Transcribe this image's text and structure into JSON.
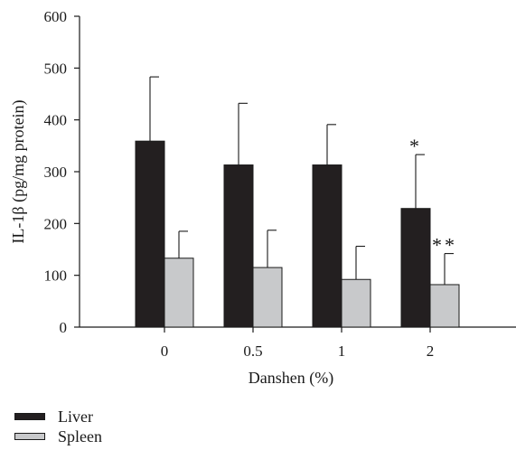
{
  "chart_data": {
    "type": "bar",
    "categories": [
      "0",
      "0.5",
      "1",
      "2"
    ],
    "series": [
      {
        "name": "Liver",
        "values": [
          359,
          313,
          313,
          229
        ],
        "errors": [
          124,
          119,
          78,
          104
        ],
        "color": "#231f20"
      },
      {
        "name": "Spleen",
        "values": [
          133,
          115,
          92,
          82
        ],
        "errors": [
          52,
          72,
          64,
          60
        ],
        "color": "#c8c9cb"
      }
    ],
    "annotations": [
      {
        "category": "2",
        "series": "Liver",
        "text": "*"
      },
      {
        "category": "2",
        "series": "Spleen",
        "text": "**"
      }
    ],
    "xlabel": "Danshen (%)",
    "ylabel": "IL-1β (pg/mg protein)",
    "ylim": [
      0,
      600
    ],
    "yticks": [
      0,
      100,
      200,
      300,
      400,
      500,
      600
    ],
    "legend_position": "bottom-left",
    "grid": false
  }
}
